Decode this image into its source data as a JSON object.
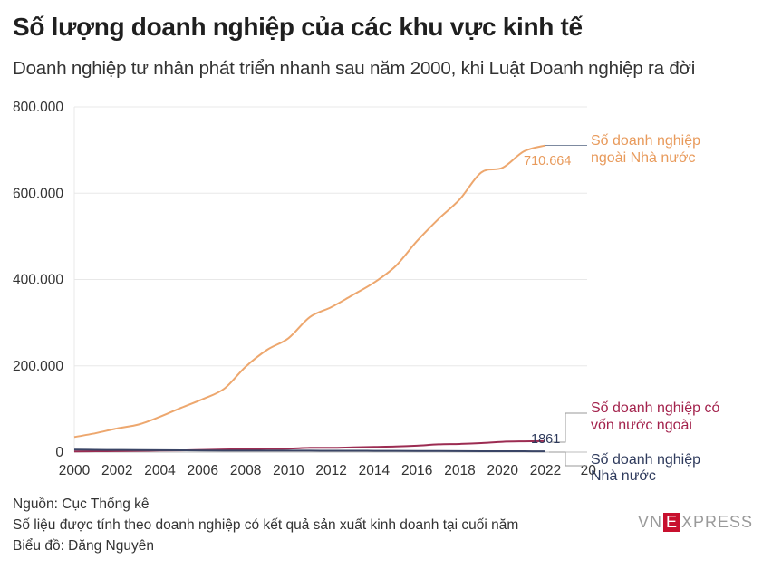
{
  "title": "Số lượng doanh nghiệp của các khu vực kinh tế",
  "subtitle": "Doanh nghiệp tư nhân phát triển nhanh sau năm 2000, khi Luật Doanh nghiệp ra đời",
  "footer": {
    "source": "Nguồn: Cục Thống kê",
    "note": "Số liệu được tính theo doanh nghiệp có kết quả sản xuất kinh doanh tại cuối năm",
    "author": "Biểu đồ: Đăng Nguyên"
  },
  "logo": {
    "prefix": "VN",
    "mark": "E",
    "suffix": "XPRESS"
  },
  "chart_data": {
    "type": "line",
    "title": "Số lượng doanh nghiệp của các khu vực kinh tế",
    "subtitle": "Doanh nghiệp tư nhân phát triển nhanh sau năm 2000, khi Luật Doanh nghiệp ra đời",
    "xlim": [
      2000,
      2022
    ],
    "ylim": [
      0,
      800000
    ],
    "y_ticks": [
      0,
      200000,
      400000,
      600000,
      800000
    ],
    "y_tick_labels": [
      "0",
      "200.000",
      "400.000",
      "600.000",
      "800.000"
    ],
    "x_ticks": [
      2000,
      2002,
      2004,
      2006,
      2008,
      2010,
      2012,
      2014,
      2016,
      2018,
      2020,
      2022
    ],
    "x_tick_labels": [
      "2000",
      "2002",
      "2004",
      "2006",
      "2008",
      "2010",
      "2012",
      "2014",
      "2016",
      "2018",
      "2020",
      "2022"
    ],
    "x_tick_label_clipped": "20",
    "grid": true,
    "legend": "direct labels at line ends",
    "x": [
      2000,
      2001,
      2002,
      2003,
      2004,
      2005,
      2006,
      2007,
      2008,
      2009,
      2010,
      2011,
      2012,
      2013,
      2014,
      2015,
      2016,
      2017,
      2018,
      2019,
      2020,
      2021,
      2022
    ],
    "series": [
      {
        "name": "Số doanh nghiệp ngoài Nhà nước",
        "label_lines": [
          "Số doanh nghiệp",
          "ngoài Nhà nước"
        ],
        "color": "#eda76e",
        "label_color": "#e89a5b",
        "values": [
          35000,
          44000,
          55000,
          64000,
          82000,
          103000,
          123000,
          147000,
          198000,
          237000,
          264000,
          313000,
          336000,
          364000,
          393000,
          431000,
          489000,
          540000,
          586000,
          648000,
          659000,
          697000,
          710664
        ],
        "end_label": "710.664"
      },
      {
        "name": "Số doanh nghiệp có vốn nước ngoài",
        "label_lines": [
          "Số doanh nghiệp có",
          "vốn nước ngoài"
        ],
        "color": "#9c2c52",
        "label_color": "#a3224c",
        "values": [
          1500,
          2000,
          2300,
          2900,
          3700,
          4000,
          5000,
          6000,
          7000,
          7500,
          8000,
          10000,
          10000,
          11000,
          12000,
          13000,
          15000,
          18000,
          19000,
          21000,
          24000,
          25000,
          25500
        ]
      },
      {
        "name": "Số doanh nghiệp Nhà nước",
        "label_lines": [
          "Số doanh nghiệp",
          "Nhà nước"
        ],
        "color": "#3a4566",
        "label_color": "#2e3a5c",
        "values": [
          5800,
          5200,
          5000,
          4800,
          4500,
          4100,
          3700,
          3500,
          3300,
          3400,
          3300,
          3300,
          3200,
          3200,
          3000,
          2800,
          2700,
          2500,
          2300,
          2200,
          2100,
          2000,
          1861
        ],
        "end_label": "1861"
      }
    ]
  }
}
